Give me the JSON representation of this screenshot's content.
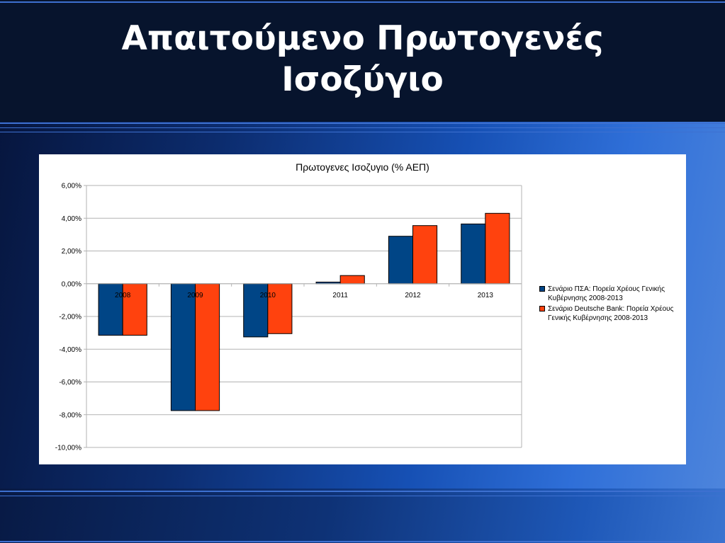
{
  "slide": {
    "title_line1": "Απαιτούμενο Πρωτογενές",
    "title_line2": "Ισοζύγιο"
  },
  "colors": {
    "series1": "#004586",
    "series2": "#ff420e",
    "grid": "#b3b3b3",
    "panel": "#ffffff"
  },
  "chart_data": {
    "type": "bar",
    "title": "Πρωτογενες Ισοζυγιο (% ΑΕΠ)",
    "xlabel": "",
    "ylabel": "",
    "categories": [
      "2008",
      "2009",
      "2010",
      "2011",
      "2012",
      "2013"
    ],
    "series": [
      {
        "name": "Σενάριο ΠΣΑ: Πορεία Χρέους Γενικής Κυβέρνησης 2008-2013",
        "values": [
          -3.15,
          -7.75,
          -3.25,
          0.1,
          2.9,
          3.65
        ]
      },
      {
        "name": "Σενάριο Deutsche Bank: Πορεία Χρέους Γενικής Κυβέρνησης 2008-2013",
        "values": [
          -3.15,
          -7.75,
          -3.05,
          0.5,
          3.55,
          4.3
        ]
      }
    ],
    "ylim": [
      -10,
      6
    ],
    "yticks": [
      6,
      4,
      2,
      0,
      -2,
      -4,
      -6,
      -8,
      -10
    ],
    "ytick_labels": [
      "6,00%",
      "4,00%",
      "2,00%",
      "0,00%",
      "-2,00%",
      "-4,00%",
      "-6,00%",
      "-8,00%",
      "-10,00%"
    ],
    "grid": true,
    "legend_position": "right"
  }
}
